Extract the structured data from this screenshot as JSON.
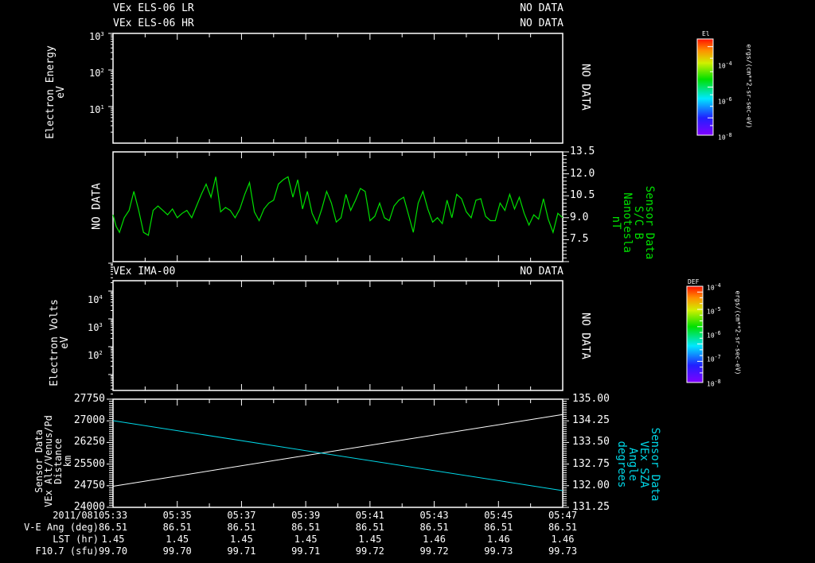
{
  "panel1": {
    "title_lines": [
      "VEx ELS-06 LR",
      "VEx ELS-06 HR"
    ],
    "status_lines": [
      "NO DATA",
      "NO DATA"
    ],
    "ylabel": [
      "Electron Energy",
      "eV"
    ],
    "yticks": [
      "10^3",
      "10^2",
      "10^1"
    ],
    "right_status": "NO DATA",
    "colorbar": {
      "title": "El",
      "ticks": [
        "10^-4",
        "10^-6",
        "10^-8"
      ],
      "units": "ergs/(cm**2-sr-sec-eV)"
    }
  },
  "panel2": {
    "left_status": "NO DATA",
    "ylabel_right": [
      "Sensor Data",
      "S/C B",
      "Nanotesla",
      "nT"
    ],
    "yticks": [
      "13.5",
      "12.0",
      "10.5",
      "9.0",
      "7.5"
    ],
    "line_color": "#00e000"
  },
  "panel3": {
    "title": "VEx IMA-00",
    "status": "NO DATA",
    "ylabel": [
      "Electron Volts",
      "eV"
    ],
    "yticks": [
      "10^4",
      "10^3",
      "10^2"
    ],
    "right_status": "NO DATA",
    "colorbar": {
      "title": "DEF",
      "ticks": [
        "10^-4",
        "10^-5",
        "10^-6",
        "10^-7",
        "10^-8"
      ],
      "units": "ergs/(cm**2-sr-sec-eV)"
    }
  },
  "panel4": {
    "ylabel_left": [
      "Sensor Data",
      "VEx Alt/Venus/Pd",
      "Distance",
      "km"
    ],
    "yticks_left": [
      "27750",
      "27000",
      "26250",
      "25500",
      "24750",
      "24000"
    ],
    "ylabel_right": [
      "Sensor Data",
      "VEx SZA",
      "Angle",
      "degrees"
    ],
    "yticks_right": [
      "135.00",
      "134.25",
      "133.50",
      "132.75",
      "132.00",
      "131.25"
    ],
    "left_color": "#ffffff",
    "right_color": "#00d8e8"
  },
  "xaxis": {
    "date_label": "2011/081",
    "times": [
      "05:33",
      "05:35",
      "05:37",
      "05:39",
      "05:41",
      "05:43",
      "05:45",
      "05:47"
    ],
    "rows": [
      {
        "label": "V-E Ang (deg)",
        "values": [
          "86.51",
          "86.51",
          "86.51",
          "86.51",
          "86.51",
          "86.51",
          "86.51",
          "86.51"
        ]
      },
      {
        "label": "LST (hr)",
        "values": [
          "1.45",
          "1.45",
          "1.45",
          "1.45",
          "1.45",
          "1.46",
          "1.46",
          "1.46"
        ]
      },
      {
        "label": "F10.7 (sfu)",
        "values": [
          "99.70",
          "99.70",
          "99.71",
          "99.71",
          "99.72",
          "99.72",
          "99.73",
          "99.73"
        ]
      }
    ]
  },
  "chart_data": [
    {
      "type": "heatmap",
      "title": "VEx ELS-06 LR / VEx ELS-06 HR",
      "status": "NO DATA",
      "ylabel": "Electron Energy (eV)",
      "yscale": "log",
      "ylim": [
        3,
        1000
      ],
      "colorbar_label": "El ergs/(cm**2-sr-sec-eV)",
      "colorbar_range": [
        1e-08,
        0.001
      ]
    },
    {
      "type": "line",
      "title": "Sensor Data S/C B",
      "ylabel": "Nanotesla (nT)",
      "ylim": [
        6.0,
        13.5
      ],
      "x_minutes_from_0533": [
        0,
        0.1,
        0.2,
        0.35,
        0.5,
        0.65,
        0.8,
        0.95,
        1.1,
        1.25,
        1.4,
        1.55,
        1.7,
        1.85,
        2.0,
        2.15,
        2.3,
        2.45,
        2.6,
        2.75,
        2.9,
        3.05,
        3.2,
        3.35,
        3.5,
        3.65,
        3.8,
        3.95,
        4.1,
        4.25,
        4.4,
        4.55,
        4.7,
        4.85,
        5.0,
        5.15,
        5.3,
        5.45,
        5.6,
        5.75,
        5.9,
        6.05,
        6.2,
        6.35,
        6.5,
        6.65,
        6.8,
        6.95,
        7.1,
        7.25,
        7.4,
        7.55,
        7.7,
        7.85,
        8.0,
        8.15,
        8.3,
        8.45,
        8.6,
        8.75,
        8.9,
        9.05,
        9.2,
        9.35,
        9.5,
        9.65,
        9.8,
        9.95,
        10.1,
        10.25,
        10.4,
        10.55,
        10.7,
        10.85,
        11.0,
        11.15,
        11.3,
        11.45,
        11.6,
        11.75,
        11.9,
        12.05,
        12.2,
        12.35,
        12.5,
        12.65,
        12.8,
        12.95,
        13.1,
        13.25,
        13.4,
        13.55,
        13.7,
        13.85,
        14.0
      ],
      "values": [
        9.2,
        8.4,
        8.0,
        9.0,
        9.5,
        10.8,
        9.5,
        8.0,
        7.8,
        9.5,
        9.8,
        9.5,
        9.2,
        9.6,
        9.0,
        9.3,
        9.5,
        9.0,
        9.8,
        10.6,
        11.3,
        10.4,
        11.8,
        9.4,
        9.7,
        9.5,
        9.0,
        9.6,
        10.6,
        11.4,
        9.4,
        8.8,
        9.6,
        10.0,
        10.2,
        11.3,
        11.6,
        11.8,
        10.4,
        11.6,
        9.6,
        10.8,
        9.3,
        8.6,
        9.6,
        10.8,
        10.0,
        8.7,
        9.0,
        10.6,
        9.5,
        10.2,
        11.0,
        10.8,
        8.8,
        9.1,
        10.0,
        9.0,
        8.8,
        9.8,
        10.2,
        10.4,
        9.2,
        8.0,
        10.0,
        10.8,
        9.6,
        8.7,
        9.0,
        8.6,
        10.2,
        9.0,
        10.6,
        10.3,
        9.4,
        9.0,
        10.2,
        10.3,
        9.1,
        8.8,
        8.8,
        10.0,
        9.5,
        10.6,
        9.6,
        10.4,
        9.3,
        8.5,
        9.2,
        8.9,
        10.3,
        8.9,
        8.0,
        9.3,
        9.0
      ]
    },
    {
      "type": "heatmap",
      "title": "VEx IMA-00",
      "status": "NO DATA",
      "ylabel": "Electron Volts (eV)",
      "yscale": "log",
      "ylim": [
        10,
        30000
      ],
      "colorbar_label": "DEF ergs/(cm**2-sr-sec-eV)",
      "colorbar_range": [
        1e-08,
        0.0001
      ]
    },
    {
      "type": "line",
      "title": "Sensor Data",
      "x": [
        "05:33",
        "05:47"
      ],
      "series": [
        {
          "name": "VEx Alt/Venus/Pd Distance (km)",
          "axis": "left",
          "values": [
            24730,
            27220
          ]
        },
        {
          "name": "VEx SZA Angle (degrees)",
          "axis": "right",
          "values": [
            134.27,
            131.83
          ]
        }
      ],
      "ylim_left": [
        24000,
        27750
      ],
      "ylim_right": [
        131.25,
        135.0
      ]
    }
  ]
}
